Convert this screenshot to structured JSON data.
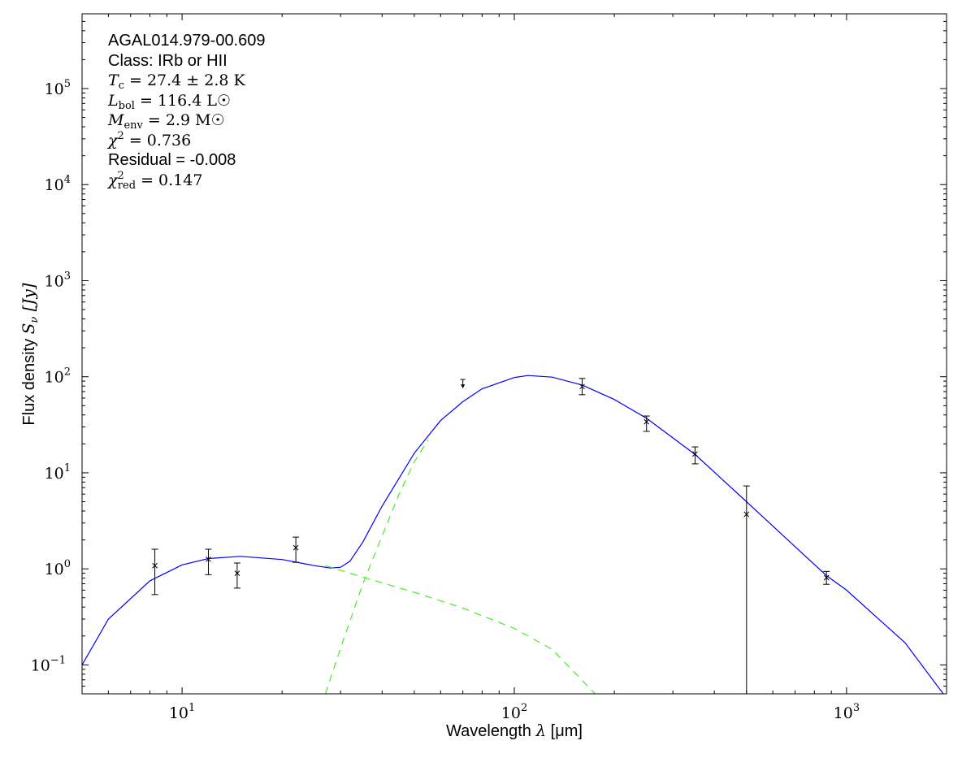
{
  "chart_data": {
    "type": "scatter",
    "xlabel": "Wavelength λ [μm]",
    "ylabel": "Flux density S_ν [Jy]",
    "xlabel_parts": {
      "pre": "Wavelength ",
      "sym": "λ",
      "post": " [μm]"
    },
    "ylabel_parts": {
      "pre": "Flux density ",
      "sym": "S",
      "sub": "ν",
      "post": " [Jy]"
    },
    "xscale": "log",
    "yscale": "log",
    "xlim": [
      5,
      2000
    ],
    "ylim": [
      0.05,
      600000
    ],
    "xticks": [
      {
        "base": "10",
        "exp": "1",
        "value": 10
      },
      {
        "base": "10",
        "exp": "2",
        "value": 100
      },
      {
        "base": "10",
        "exp": "3",
        "value": 1000
      }
    ],
    "yticks": [
      {
        "base": "10",
        "exp": "−1",
        "value": 0.1
      },
      {
        "base": "10",
        "exp": "0",
        "value": 1
      },
      {
        "base": "10",
        "exp": "1",
        "value": 10
      },
      {
        "base": "10",
        "exp": "2",
        "value": 100
      },
      {
        "base": "10",
        "exp": "3",
        "value": 1000
      },
      {
        "base": "10",
        "exp": "4",
        "value": 10000
      },
      {
        "base": "10",
        "exp": "5",
        "value": 100000
      }
    ],
    "grid": false,
    "annotations": {
      "source": "AGAL014.979-00.609",
      "class": "Class: IRb or HII",
      "tc": {
        "sym": "T",
        "sub": "c",
        "value": " = 27.4 ± 2.8 K"
      },
      "lbol": {
        "sym": "L",
        "sub": "bol",
        "value": " = 116.4 L☉"
      },
      "menv": {
        "sym": "M",
        "sub": "env",
        "value": " = 2.9 M☉"
      },
      "chi2": {
        "sym": "χ",
        "sup": "2",
        "value": " = 0.736"
      },
      "residual": "Residual = -0.008",
      "chi2red": {
        "sym": "χ",
        "sup": "2",
        "sub": "red",
        "value": " = 0.147"
      }
    },
    "points": [
      {
        "x": 8.28,
        "y": 1.08,
        "yerr_low": 0.54,
        "yerr_high": 1.6
      },
      {
        "x": 12,
        "y": 1.26,
        "yerr_low": 0.87,
        "yerr_high": 1.6
      },
      {
        "x": 14.65,
        "y": 0.9,
        "yerr_low": 0.63,
        "yerr_high": 1.15
      },
      {
        "x": 22,
        "y": 1.66,
        "yerr_low": 1.17,
        "yerr_high": 2.14
      },
      {
        "x": 160,
        "y": 79,
        "yerr_low": 65,
        "yerr_high": 96
      },
      {
        "x": 250,
        "y": 34,
        "yerr_low": 27,
        "yerr_high": 39
      },
      {
        "x": 350,
        "y": 15.7,
        "yerr_low": 12.4,
        "yerr_high": 18.6
      },
      {
        "x": 500,
        "y": 3.7,
        "yerr_low": 0.05,
        "yerr_high": 7.3
      },
      {
        "x": 870,
        "y": 0.81,
        "yerr_low": 0.69,
        "yerr_high": 0.94
      }
    ],
    "upper_limits": [
      {
        "x": 70,
        "y": 90
      }
    ],
    "series": [
      {
        "style": "solid",
        "color": "#0000ff",
        "x": [
          5,
          6,
          8,
          10,
          12,
          15,
          20,
          25,
          28,
          30,
          32,
          35,
          40,
          50,
          60,
          70,
          80,
          100,
          110,
          130,
          160,
          200,
          250,
          350,
          500,
          700,
          870,
          1000,
          1500,
          2000
        ],
        "y": [
          0.1,
          0.3,
          0.75,
          1.1,
          1.28,
          1.35,
          1.25,
          1.08,
          1.02,
          1.04,
          1.2,
          1.9,
          4.5,
          16,
          35,
          55,
          75,
          98,
          103,
          99,
          82,
          58,
          37,
          15.5,
          5,
          1.7,
          0.85,
          0.6,
          0.17,
          0.045
        ]
      },
      {
        "style": "dashed",
        "color": "#44ee22",
        "x": [
          27,
          35,
          50,
          70,
          100,
          130,
          175
        ],
        "y": [
          1.08,
          0.82,
          0.57,
          0.39,
          0.24,
          0.145,
          0.05
        ]
      },
      {
        "style": "dashed",
        "color": "#44ee22",
        "x": [
          27,
          30,
          35,
          40,
          45,
          50,
          55
        ],
        "y": [
          0.05,
          0.15,
          0.7,
          2.2,
          6,
          13,
          22
        ]
      }
    ],
    "colors": {
      "model": "#0000ff",
      "components": "#44ee22",
      "points": "#000000"
    }
  }
}
